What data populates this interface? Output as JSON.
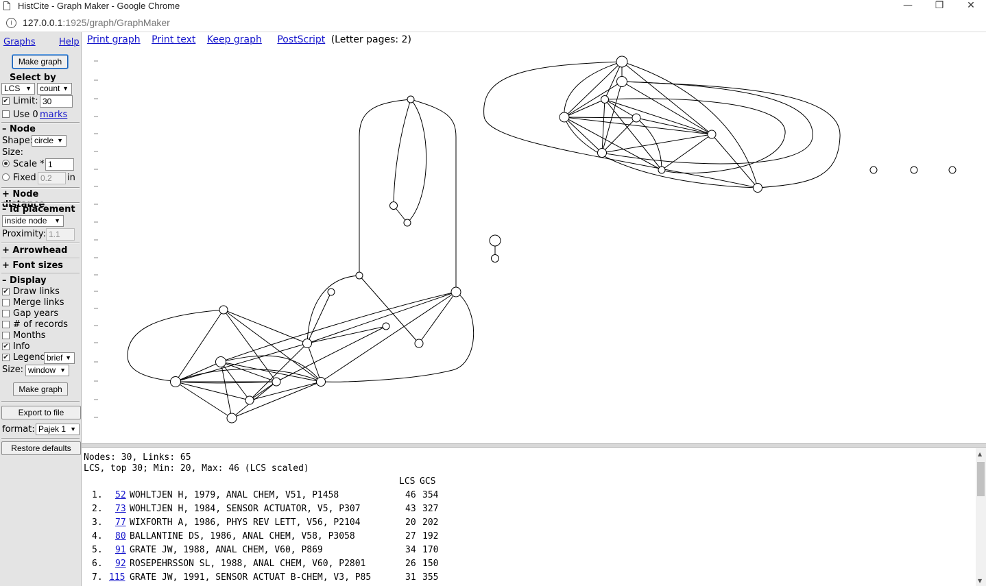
{
  "window": {
    "title": "HistCite - Graph Maker - Google Chrome",
    "minimize": "—",
    "restore": "❐",
    "close": "✕"
  },
  "address": {
    "host": "127.0.0.1",
    "path": ":1925/graph/GraphMaker",
    "info_icon": "i"
  },
  "sidebar": {
    "graphs_link": "Graphs",
    "help_link": "Help",
    "make_graph_top": "Make graph",
    "select_by_label": "Select by",
    "select_field": "LCS",
    "select_mode": "count",
    "limit_label": "Limit:",
    "limit_value": "30",
    "use_label": "Use 0",
    "marks_link": "marks",
    "node_section": "– Node",
    "shape_label": "Shape:",
    "shape_value": "circle",
    "size_label": "Size:",
    "scale_label": "Scale *",
    "scale_value": "1",
    "fixed_label": "Fixed",
    "fixed_value": "0.2",
    "fixed_unit": "in",
    "node_distance_section": "+ Node distance",
    "id_placement_section": "– Id placement",
    "id_placement_value": "inside node",
    "proximity_label": "Proximity:",
    "proximity_value": "1.1",
    "arrowhead_section": "+ Arrowhead",
    "font_sizes_section": "+ Font sizes",
    "display_section": "– Display",
    "draw_links": "Draw links",
    "merge_links": "Merge links",
    "gap_years": "Gap years",
    "num_records": "# of records",
    "months": "Months",
    "info": "Info",
    "legend": "Legend",
    "legend_value": "brief",
    "size2_label": "Size:",
    "size2_value": "window",
    "make_graph_bottom": "Make graph",
    "export_button": "Export to file",
    "format_label": "format:",
    "format_value": "Pajek 1",
    "restore_button": "Restore defaults"
  },
  "toplinks": {
    "print_graph": "Print graph",
    "print_text": "Print text",
    "keep_graph": "Keep graph",
    "postscript": "PostScript",
    "letter_pages": "(Letter pages: 2)"
  },
  "summary": {
    "line1": "Nodes: 30, Links: 65",
    "line2": "LCS, top 30; Min: 20, Max: 46 (LCS scaled)",
    "col_lcs": "LCS",
    "col_gcs": "GCS"
  },
  "records": [
    {
      "num": "1.",
      "id": "52",
      "text": "WOHLTJEN H, 1979, ANAL CHEM, V51, P1458",
      "lcs": "46",
      "gcs": "354"
    },
    {
      "num": "2.",
      "id": "73",
      "text": "WOHLTJEN H, 1984, SENSOR ACTUATOR, V5, P307",
      "lcs": "43",
      "gcs": "327"
    },
    {
      "num": "3.",
      "id": "77",
      "text": "WIXFORTH A, 1986, PHYS REV LETT, V56, P2104",
      "lcs": "20",
      "gcs": "202"
    },
    {
      "num": "4.",
      "id": "80",
      "text": "BALLANTINE DS, 1986, ANAL CHEM, V58, P3058",
      "lcs": "27",
      "gcs": "192"
    },
    {
      "num": "5.",
      "id": "91",
      "text": "GRATE JW, 1988, ANAL CHEM, V60, P869",
      "lcs": "34",
      "gcs": "170"
    },
    {
      "num": "6.",
      "id": "92",
      "text": "ROSEPEHRSSON SL, 1988, ANAL CHEM, V60, P2801",
      "lcs": "26",
      "gcs": "150"
    },
    {
      "num": "7.",
      "id": "115",
      "text": "GRATE JW, 1991, SENSOR ACTUAT B-CHEM, V3, P85",
      "lcs": "31",
      "gcs": "355"
    }
  ]
}
